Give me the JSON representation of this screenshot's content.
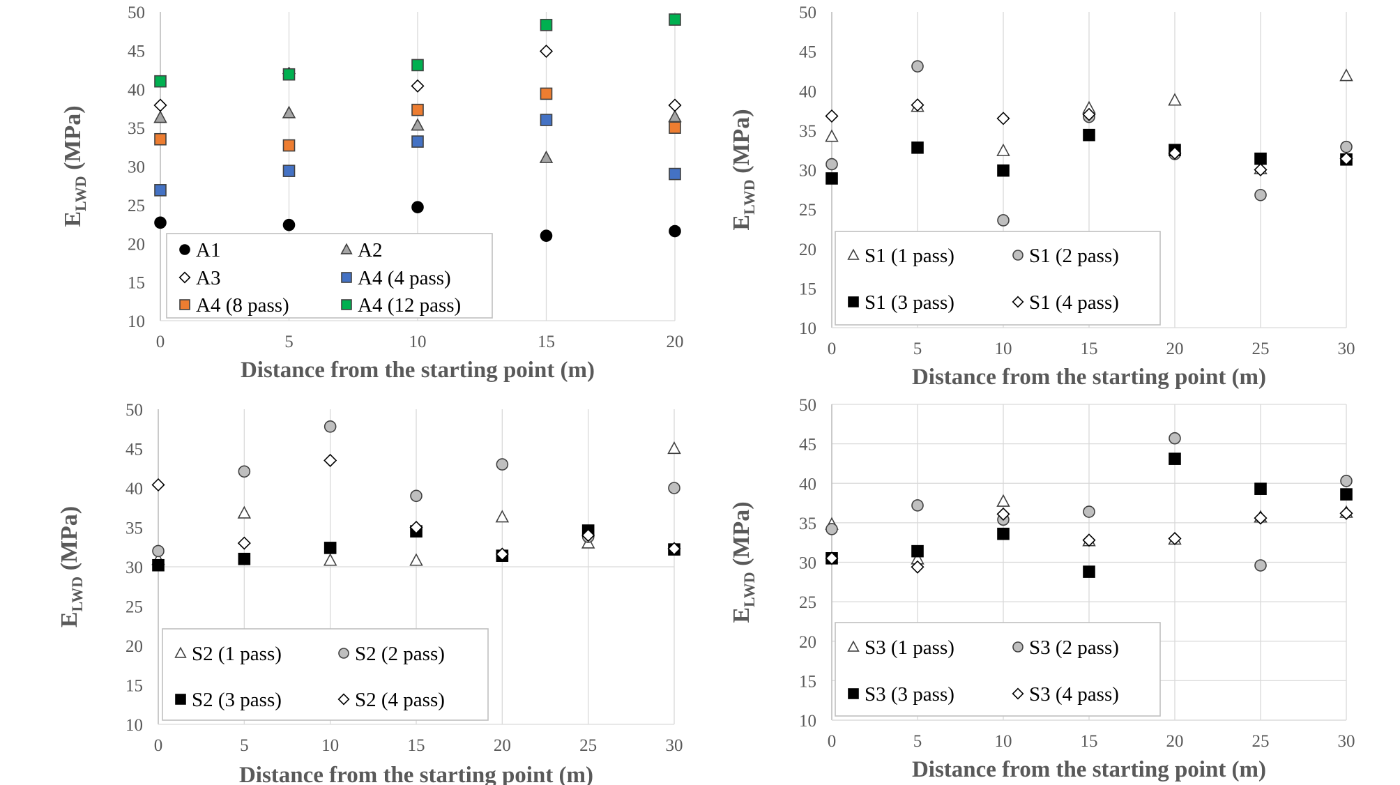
{
  "chart_data": [
    {
      "type": "scatter",
      "panel": "top-left",
      "xlabel": "Distance from the starting point (m)",
      "ylabel": {
        "main": "E",
        "sub": "LWD",
        "unit": " (MPa)"
      },
      "xlim": [
        0,
        20
      ],
      "xticks": [
        0,
        5,
        10,
        15,
        20
      ],
      "ylim": [
        10,
        50
      ],
      "yticks": [
        10,
        15,
        20,
        25,
        30,
        35,
        40,
        45,
        50
      ],
      "grid": "vertical",
      "legend": {
        "columns": 2,
        "placement": "bottom-left"
      },
      "series": [
        {
          "name": "A1",
          "marker": "circle",
          "fill": "#000000",
          "x": [
            0,
            5,
            10,
            15,
            20
          ],
          "y": [
            22.7,
            22.4,
            24.7,
            21.0,
            21.6
          ]
        },
        {
          "name": "A2",
          "marker": "triangle",
          "fill": "#a6a6a6",
          "x": [
            0,
            5,
            10,
            15,
            20
          ],
          "y": [
            36.3,
            36.9,
            35.3,
            31.1,
            36.4
          ]
        },
        {
          "name": "A3",
          "marker": "diamond",
          "fill": "#ffffff",
          "x": [
            0,
            5,
            10,
            15,
            20
          ],
          "y": [
            37.9,
            42.0,
            40.4,
            44.9,
            37.9
          ]
        },
        {
          "name": "A4 (4 pass)",
          "marker": "square",
          "fill": "#4472c4",
          "x": [
            0,
            5,
            10,
            15,
            20
          ],
          "y": [
            26.9,
            29.4,
            33.2,
            36.0,
            29.0
          ]
        },
        {
          "name": "A4 (8 pass)",
          "marker": "square",
          "fill": "#ed7d31",
          "x": [
            0,
            5,
            10,
            15,
            20
          ],
          "y": [
            33.5,
            32.7,
            37.3,
            39.4,
            35.0
          ]
        },
        {
          "name": "A4 (12 pass)",
          "marker": "square",
          "fill": "#00b050",
          "x": [
            0,
            5,
            10,
            15,
            20
          ],
          "y": [
            41.0,
            41.9,
            43.1,
            48.3,
            49.0
          ]
        }
      ]
    },
    {
      "type": "scatter",
      "panel": "top-right",
      "xlabel": "Distance from the starting point (m)",
      "ylabel": {
        "main": "E",
        "sub": "LWD",
        "unit": " (MPa)"
      },
      "xlim": [
        0,
        30
      ],
      "xticks": [
        0,
        5,
        10,
        15,
        20,
        25,
        30
      ],
      "ylim": [
        10,
        50
      ],
      "yticks": [
        10,
        15,
        20,
        25,
        30,
        35,
        40,
        45,
        50
      ],
      "grid": "vertical",
      "legend": {
        "columns": 2,
        "placement": "bottom-left"
      },
      "series": [
        {
          "name": "S1 (1 pass)",
          "marker": "triangle",
          "fill": "#ffffff",
          "x": [
            0,
            5,
            10,
            15,
            20,
            25,
            30
          ],
          "y": [
            34.2,
            38.0,
            32.4,
            37.8,
            38.8,
            30.1,
            41.9
          ]
        },
        {
          "name": "S1 (2 pass)",
          "marker": "circle",
          "fill": "#bfbfbf",
          "x": [
            0,
            5,
            10,
            15,
            20,
            25,
            30
          ],
          "y": [
            30.7,
            43.1,
            23.6,
            36.7,
            32.0,
            26.8,
            32.9
          ]
        },
        {
          "name": "S1 (3 pass)",
          "marker": "square",
          "fill": "#000000",
          "x": [
            0,
            5,
            10,
            15,
            20,
            25,
            30
          ],
          "y": [
            28.9,
            32.8,
            29.9,
            34.4,
            32.5,
            31.4,
            31.3
          ]
        },
        {
          "name": "S1 (4 pass)",
          "marker": "diamond",
          "fill": "#ffffff",
          "x": [
            0,
            5,
            10,
            15,
            20,
            25,
            30
          ],
          "y": [
            36.8,
            38.2,
            36.5,
            37.0,
            32.1,
            30.0,
            31.4
          ]
        }
      ]
    },
    {
      "type": "scatter",
      "panel": "bottom-left",
      "xlabel": "Distance from the starting point (m)",
      "ylabel": {
        "main": "E",
        "sub": "LWD",
        "unit": " (MPa)"
      },
      "xlim": [
        0,
        30
      ],
      "xticks": [
        0,
        5,
        10,
        15,
        20,
        25,
        30
      ],
      "ylim": [
        10,
        50
      ],
      "yticks": [
        10,
        15,
        20,
        25,
        30,
        35,
        40,
        45,
        50
      ],
      "grid": "vertical-and-horizontal-at-30",
      "legend": {
        "columns": 2,
        "placement": "bottom-left"
      },
      "series": [
        {
          "name": "S2 (1 pass)",
          "marker": "triangle",
          "fill": "#ffffff",
          "x": [
            0,
            5,
            10,
            15,
            20,
            25,
            30
          ],
          "y": [
            30.9,
            36.8,
            30.8,
            30.8,
            36.3,
            33.0,
            45.0
          ]
        },
        {
          "name": "S2 (2 pass)",
          "marker": "circle",
          "fill": "#bfbfbf",
          "x": [
            0,
            5,
            10,
            15,
            20,
            25,
            30
          ],
          "y": [
            32.0,
            42.1,
            47.8,
            39.0,
            43.0,
            33.8,
            40.0
          ]
        },
        {
          "name": "S2 (3 pass)",
          "marker": "square",
          "fill": "#000000",
          "x": [
            0,
            5,
            10,
            15,
            20,
            25,
            30
          ],
          "y": [
            30.2,
            31.0,
            32.4,
            34.5,
            31.4,
            34.6,
            32.2
          ]
        },
        {
          "name": "S2 (4 pass)",
          "marker": "diamond",
          "fill": "#ffffff",
          "x": [
            0,
            5,
            10,
            15,
            20,
            25,
            30
          ],
          "y": [
            40.4,
            33.0,
            43.5,
            35.0,
            31.6,
            34.0,
            32.3
          ]
        }
      ]
    },
    {
      "type": "scatter",
      "panel": "bottom-right",
      "xlabel": "Distance from the starting point (m)",
      "ylabel": {
        "main": "E",
        "sub": "LWD",
        "unit": " (MPa)"
      },
      "xlim": [
        0,
        30
      ],
      "xticks": [
        0,
        5,
        10,
        15,
        20,
        25,
        30
      ],
      "ylim": [
        10,
        50
      ],
      "yticks": [
        10,
        15,
        20,
        25,
        30,
        35,
        40,
        45,
        50
      ],
      "grid": "vertical-and-horizontal",
      "legend": {
        "columns": 2,
        "placement": "bottom-left"
      },
      "series": [
        {
          "name": "S3 (1 pass)",
          "marker": "triangle",
          "fill": "#ffffff",
          "x": [
            0,
            5,
            10,
            15,
            20,
            25,
            30
          ],
          "y": [
            34.8,
            30.4,
            37.7,
            32.7,
            32.9,
            35.7,
            36.3
          ]
        },
        {
          "name": "S3 (2 pass)",
          "marker": "circle",
          "fill": "#bfbfbf",
          "x": [
            0,
            5,
            10,
            15,
            20,
            25,
            30
          ],
          "y": [
            34.2,
            37.2,
            35.4,
            36.4,
            45.7,
            29.6,
            40.3
          ]
        },
        {
          "name": "S3 (3 pass)",
          "marker": "square",
          "fill": "#000000",
          "x": [
            0,
            5,
            10,
            15,
            20,
            25,
            30
          ],
          "y": [
            30.5,
            31.4,
            33.6,
            28.8,
            43.1,
            39.3,
            38.6
          ]
        },
        {
          "name": "S3 (4 pass)",
          "marker": "diamond",
          "fill": "#ffffff",
          "x": [
            0,
            5,
            10,
            15,
            20,
            25,
            30
          ],
          "y": [
            30.5,
            29.4,
            36.1,
            32.8,
            33.0,
            35.6,
            36.2
          ]
        }
      ]
    }
  ]
}
